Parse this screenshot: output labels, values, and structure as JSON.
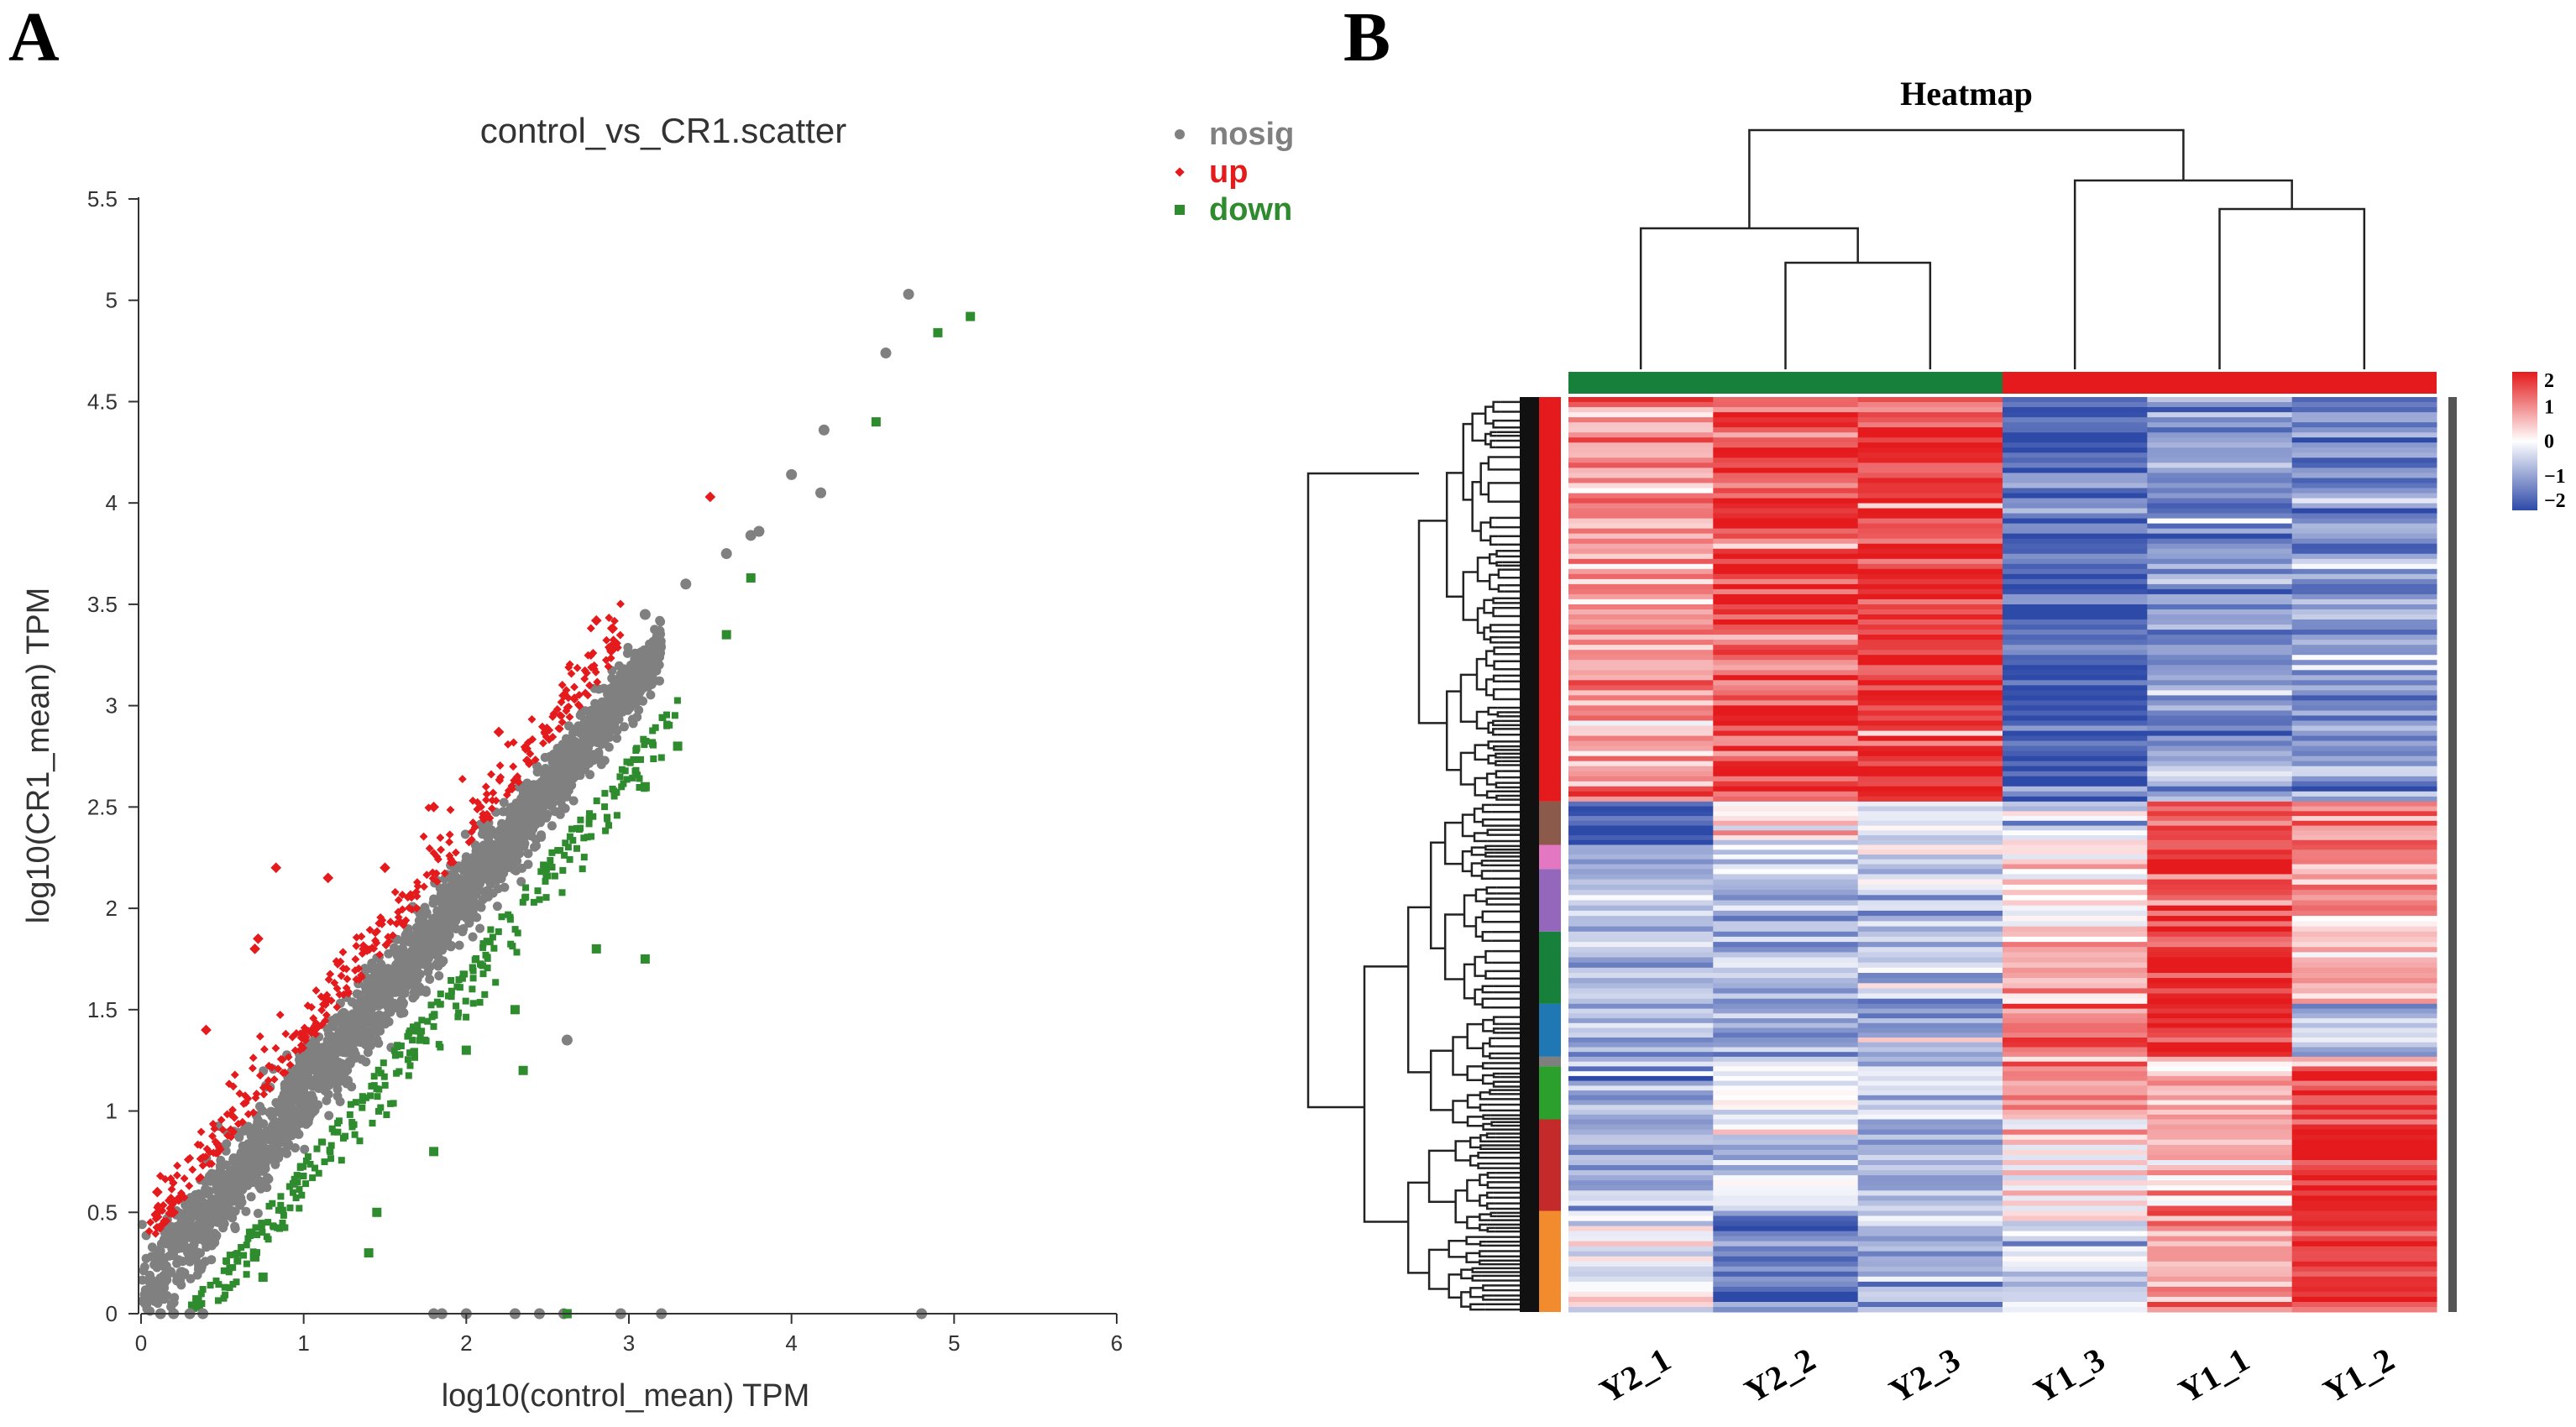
{
  "panels": {
    "a_letter": "A",
    "b_letter": "B"
  },
  "colors": {
    "nosig": "#808080",
    "up": "#e41a1c",
    "down": "#2e8b2e",
    "heat_high": "#e41a1c",
    "heat_mid": "#ffffff",
    "heat_low": "#2e4aa8"
  },
  "chart_data": [
    {
      "type": "scatter",
      "title": "control_vs_CR1.scatter",
      "xlabel": "log10(control_mean) TPM",
      "ylabel": "log10(CR1_mean) TPM",
      "xlim": [
        0,
        6
      ],
      "ylim": [
        0,
        5.5
      ],
      "xticks": [
        "0",
        "1",
        "2",
        "3",
        "4",
        "5",
        "6"
      ],
      "yticks": [
        "0",
        "0.5",
        "1",
        "1.5",
        "2",
        "2.5",
        "3",
        "3.5",
        "4",
        "4.5",
        "5",
        "5.5"
      ],
      "legend_position": "top-right",
      "series": [
        {
          "name": "nosig",
          "marker": "circle",
          "points": [
            [
              4.72,
              5.03
            ],
            [
              4.58,
              4.74
            ],
            [
              4.2,
              4.36
            ],
            [
              4.0,
              4.14
            ],
            [
              4.18,
              4.05
            ],
            [
              3.8,
              3.86
            ],
            [
              3.75,
              3.84
            ],
            [
              3.6,
              3.75
            ],
            [
              2.62,
              1.35
            ],
            [
              3.35,
              3.6
            ],
            [
              3.1,
              3.45
            ],
            [
              1.8,
              0.0
            ],
            [
              1.85,
              0.0
            ],
            [
              2.0,
              0.0
            ],
            [
              2.3,
              0.0
            ],
            [
              2.45,
              0.0
            ],
            [
              2.6,
              0.0
            ],
            [
              2.95,
              0.0
            ],
            [
              3.2,
              0.0
            ],
            [
              4.8,
              0.0
            ],
            [
              0.2,
              0.0
            ],
            [
              0.3,
              0.0
            ],
            [
              0.38,
              0.0
            ],
            [
              0.12,
              0.0
            ]
          ]
        },
        {
          "name": "up",
          "marker": "diamond",
          "points": [
            [
              3.5,
              4.03
            ],
            [
              2.9,
              3.38
            ],
            [
              2.8,
              3.42
            ],
            [
              2.6,
              3.05
            ],
            [
              1.15,
              2.15
            ],
            [
              0.83,
              2.2
            ],
            [
              0.72,
              1.85
            ],
            [
              0.7,
              1.8
            ],
            [
              1.8,
              2.5
            ],
            [
              2.2,
              2.87
            ],
            [
              1.5,
              2.2
            ],
            [
              0.4,
              1.4
            ],
            [
              0.2,
              0.5
            ],
            [
              0.1,
              0.6
            ]
          ]
        },
        {
          "name": "down",
          "marker": "square",
          "points": [
            [
              5.1,
              4.92
            ],
            [
              4.9,
              4.84
            ],
            [
              4.52,
              4.4
            ],
            [
              3.75,
              3.63
            ],
            [
              3.6,
              3.35
            ],
            [
              3.1,
              1.75
            ],
            [
              2.8,
              1.8
            ],
            [
              2.3,
              1.5
            ],
            [
              2.35,
              1.2
            ],
            [
              2.0,
              1.3
            ],
            [
              1.8,
              0.8
            ],
            [
              1.45,
              0.5
            ],
            [
              1.4,
              0.3
            ],
            [
              0.75,
              0.18
            ],
            [
              0.7,
              0.28
            ],
            [
              2.62,
              0.0
            ],
            [
              3.1,
              2.6
            ],
            [
              3.3,
              2.8
            ]
          ]
        }
      ],
      "ridge": {
        "x_range": [
          0,
          3.2
        ],
        "slope": 1.0,
        "intercept": 0.08
      }
    },
    {
      "type": "heatmap",
      "title": "Heatmap",
      "columns": [
        "Y2_1",
        "Y2_2",
        "Y2_3",
        "Y1_3",
        "Y1_1",
        "Y1_2"
      ],
      "column_groups": [
        {
          "name": "Y2",
          "columns": [
            "Y2_1",
            "Y2_2",
            "Y2_3"
          ],
          "color": "#17803a"
        },
        {
          "name": "Y1",
          "columns": [
            "Y1_3",
            "Y1_1",
            "Y1_2"
          ],
          "color": "#e41a1c"
        }
      ],
      "colorbar": {
        "ticks": [
          "2",
          "1",
          "0",
          "−1",
          "−2"
        ],
        "range": [
          -2,
          2
        ]
      },
      "row_clusters": [
        {
          "color": "#e41a1c",
          "fraction": 0.42,
          "values": [
            0.9,
            1.6,
            1.7,
            -1.8,
            -1.1,
            -1.2
          ]
        },
        {
          "color": "#8b5a4a",
          "fraction": 0.045,
          "values": [
            -1.9,
            0.1,
            -0.4,
            -0.3,
            1.3,
            1.1
          ]
        },
        {
          "color": "#e377c2",
          "fraction": 0.025,
          "values": [
            -1.0,
            -0.3,
            -0.5,
            0.2,
            1.9,
            1.0
          ]
        },
        {
          "color": "#9467bd",
          "fraction": 0.065,
          "values": [
            -0.6,
            -0.7,
            -0.4,
            0.3,
            1.8,
            0.9
          ]
        },
        {
          "color": "#17803a",
          "fraction": 0.075,
          "values": [
            -0.7,
            -0.6,
            -0.8,
            0.7,
            1.7,
            0.8
          ]
        },
        {
          "color": "#1f77b4",
          "fraction": 0.055,
          "values": [
            -0.9,
            -1.0,
            -1.0,
            1.3,
            1.6,
            -0.7
          ]
        },
        {
          "color": "#7f7f7f",
          "fraction": 0.01,
          "values": [
            -0.8,
            -0.5,
            -0.7,
            1.0,
            0.3,
            0.6
          ]
        },
        {
          "color": "#2ca02c",
          "fraction": 0.055,
          "values": [
            -1.2,
            -0.3,
            -0.6,
            0.9,
            0.5,
            1.7
          ]
        },
        {
          "color": "#c42a2a",
          "fraction": 0.095,
          "values": [
            -0.8,
            -0.4,
            -1.0,
            0.2,
            0.6,
            1.8
          ]
        },
        {
          "color": "#f28a2e",
          "fraction": 0.105,
          "values": [
            0.1,
            -1.6,
            -0.7,
            -0.3,
            1.0,
            1.7
          ]
        }
      ]
    }
  ]
}
